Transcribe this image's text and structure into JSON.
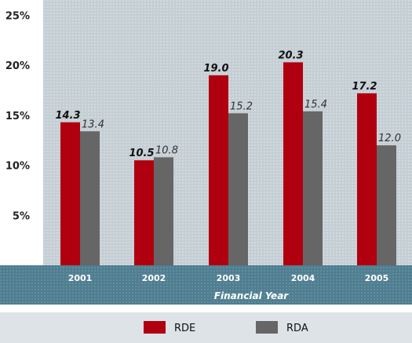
{
  "chart_data": {
    "type": "bar",
    "categories": [
      "2001",
      "2002",
      "2003",
      "2004",
      "2005"
    ],
    "series": [
      {
        "name": "RDE",
        "values": [
          14.3,
          10.5,
          19.0,
          20.3,
          17.2
        ],
        "labels": [
          "14.3",
          "10.5",
          "19.0",
          "20.3",
          "17.2"
        ],
        "color": "#b00010"
      },
      {
        "name": "RDA",
        "values": [
          13.4,
          10.8,
          15.2,
          15.4,
          12.0
        ],
        "labels": [
          "13.4",
          "10.8",
          "15.2",
          "15.4",
          "12.0"
        ],
        "color": "#666666"
      }
    ],
    "yticks": [
      "5%",
      "10%",
      "15%",
      "20%",
      "25%"
    ],
    "ytick_values": [
      5,
      10,
      15,
      20,
      25
    ],
    "ylim": [
      0,
      25
    ],
    "xlabel": "Financial Year",
    "ylabel": "",
    "title": "",
    "grid": false,
    "legend_position": "bottom",
    "colors": {
      "plot_background": "#c4ced4",
      "axis_band": "#4f7e91",
      "legend_background": "#dde3e7"
    }
  }
}
